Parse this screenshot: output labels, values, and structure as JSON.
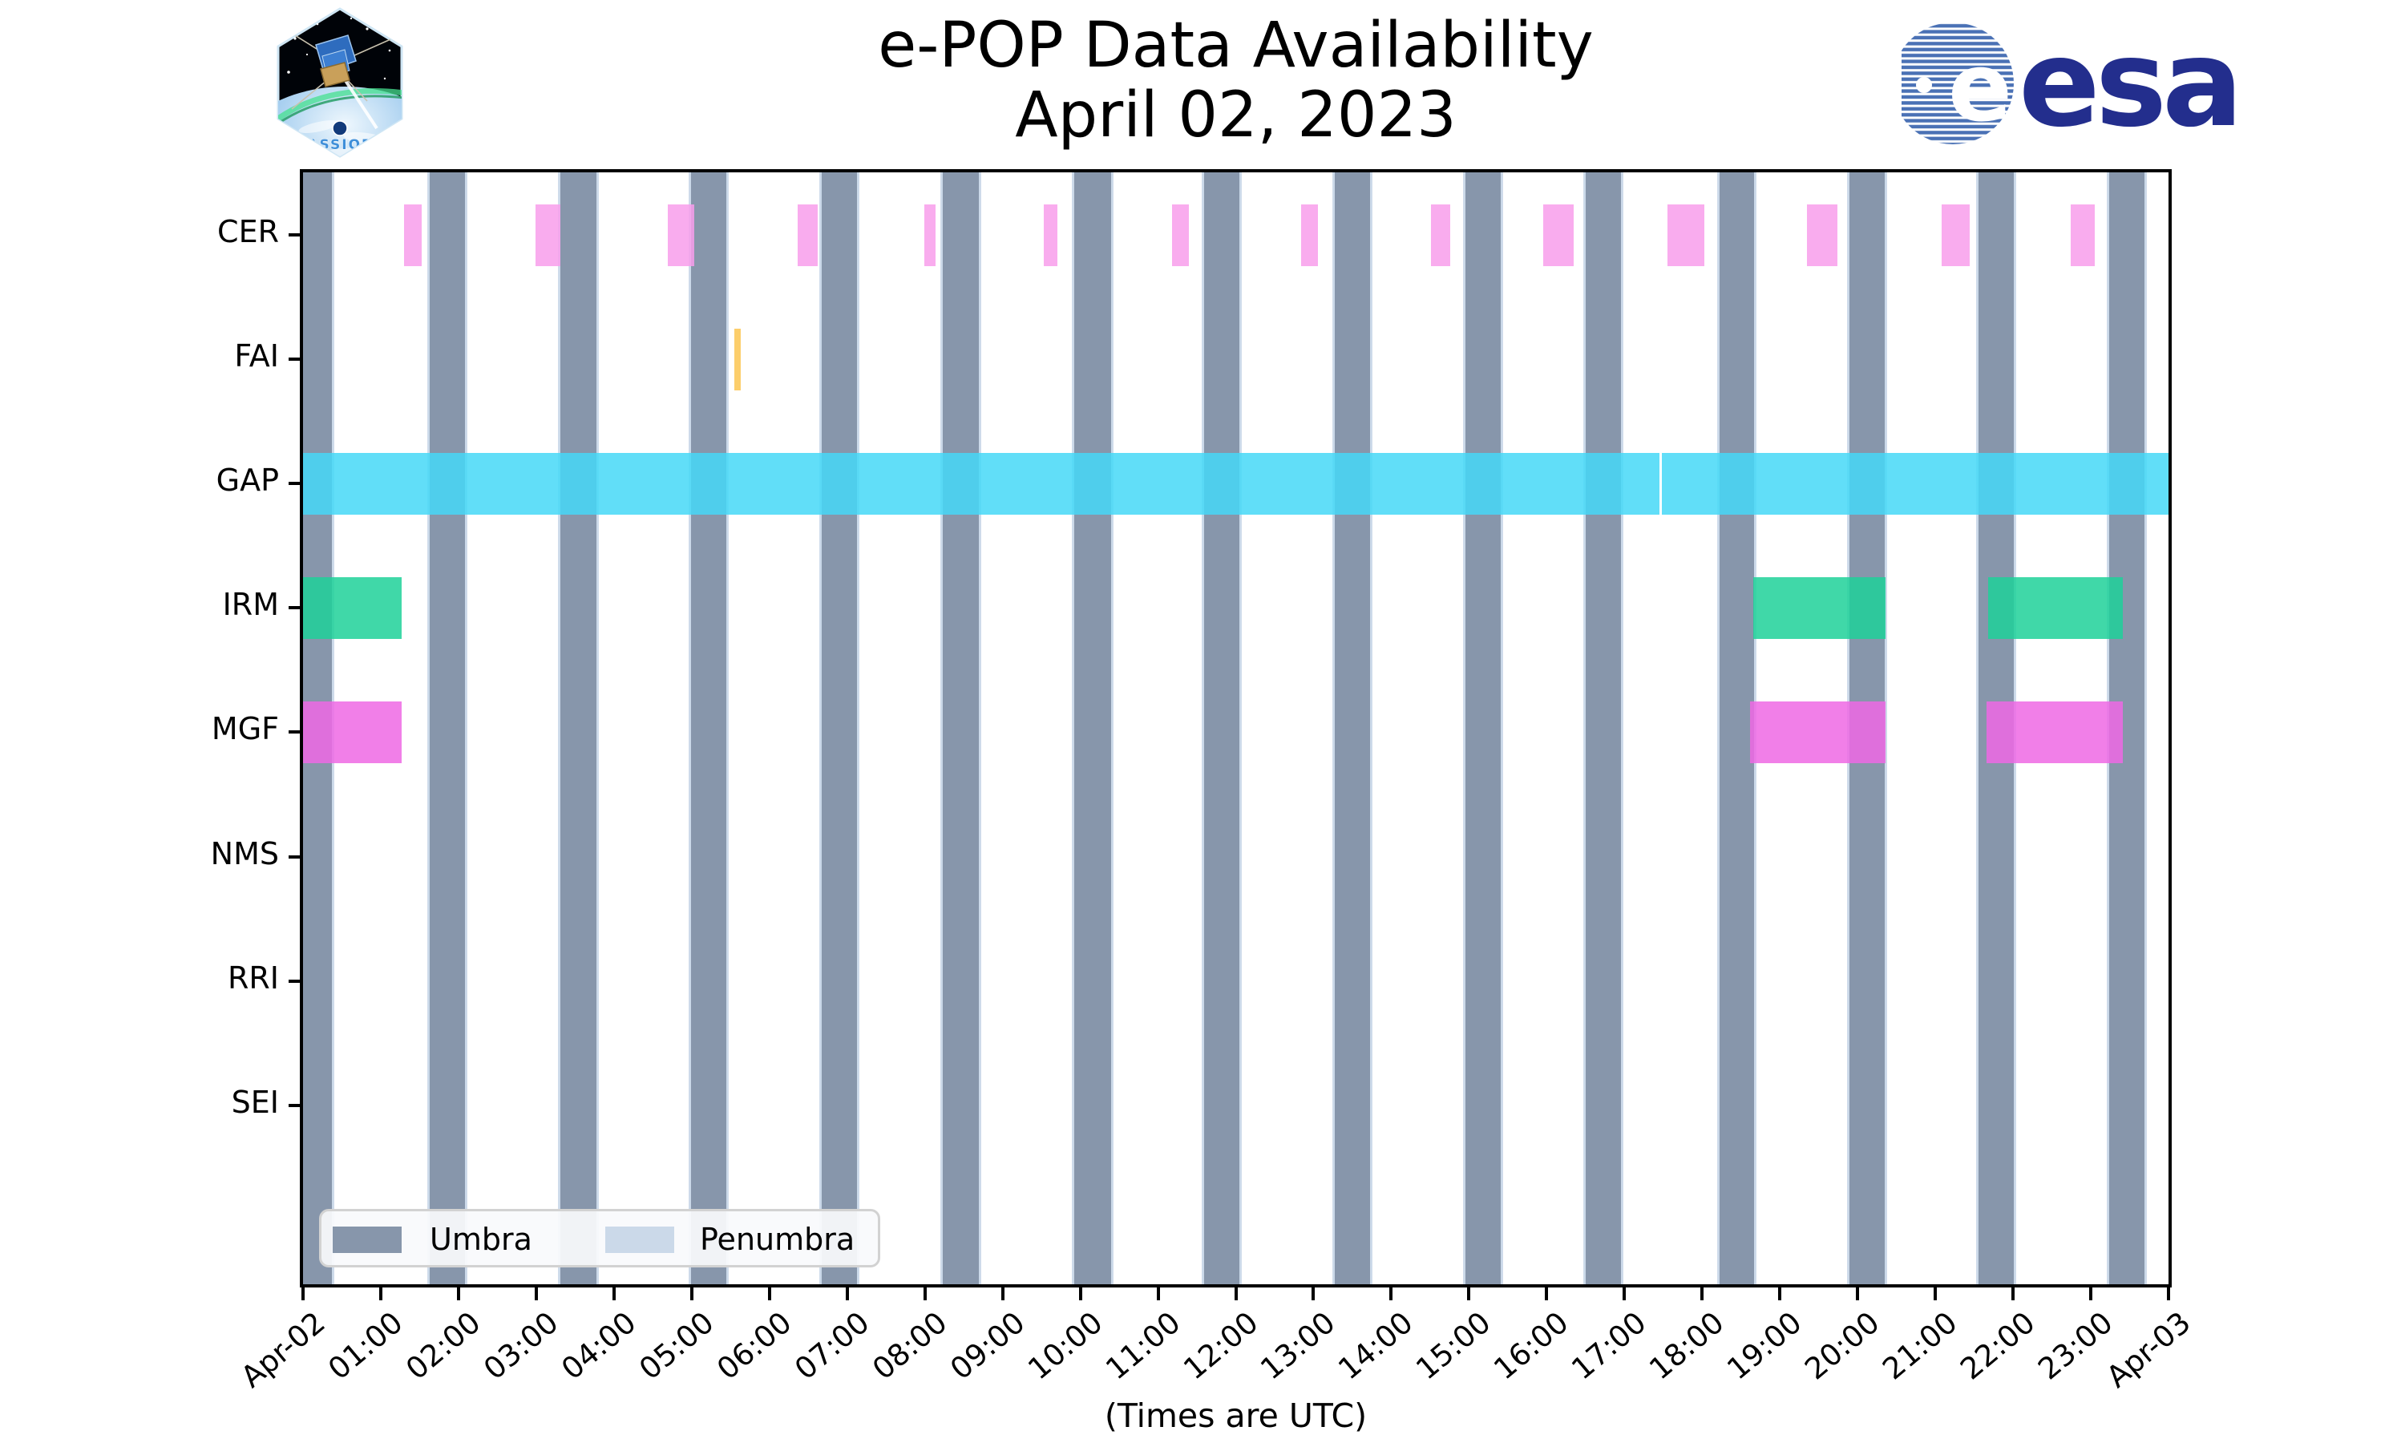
{
  "header": {
    "title": "e-POP Data Availability",
    "subtitle": "April 02, 2023",
    "cassiope_label": "CASSIOPE",
    "esa_label": "esa",
    "esa_ball_letter": "e"
  },
  "legend": {
    "items": [
      {
        "label": "Umbra",
        "color_key": "umbra"
      },
      {
        "label": "Penumbra",
        "color_key": "penumbra"
      }
    ]
  },
  "axis": {
    "xlabel": "(Times are UTC)",
    "y_labels": [
      "CER",
      "FAI",
      "GAP",
      "IRM",
      "MGF",
      "NMS",
      "RRI",
      "SEI"
    ],
    "x_tick_labels": [
      "Apr-02",
      "01:00",
      "02:00",
      "03:00",
      "04:00",
      "05:00",
      "06:00",
      "07:00",
      "08:00",
      "09:00",
      "10:00",
      "11:00",
      "12:00",
      "13:00",
      "14:00",
      "15:00",
      "16:00",
      "17:00",
      "18:00",
      "19:00",
      "20:00",
      "21:00",
      "22:00",
      "23:00",
      "Apr-03"
    ]
  },
  "colors": {
    "background": "#ffffff",
    "spine": "#000000",
    "text": "#000000",
    "umbra": "#8796AB",
    "penumbra": "#CBD9E9",
    "cer": "rgba(248,157,235,0.85)",
    "fai": "rgba(252,198,81,0.85)",
    "gap": "rgba(69,216,247,0.85)",
    "irm": "rgba(31,209,153,0.85)",
    "mgf": "rgba(238,104,228,0.85)"
  },
  "chart_data": {
    "type": "bar",
    "subtype": "broken_barh_timeline",
    "title": "e-POP Data Availability",
    "subtitle": "April 02, 2023",
    "xlabel": "(Times are UTC)",
    "x_unit": "hours UTC on 2023-04-02",
    "xlim": [
      0,
      24
    ],
    "x_tick_labels": [
      "Apr-02",
      "01:00",
      "02:00",
      "03:00",
      "04:00",
      "05:00",
      "06:00",
      "07:00",
      "08:00",
      "09:00",
      "10:00",
      "11:00",
      "12:00",
      "13:00",
      "14:00",
      "15:00",
      "16:00",
      "17:00",
      "18:00",
      "19:00",
      "20:00",
      "21:00",
      "22:00",
      "23:00",
      "Apr-03"
    ],
    "rows": [
      "CER",
      "FAI",
      "GAP",
      "IRM",
      "MGF",
      "NMS",
      "RRI",
      "SEI"
    ],
    "legend": [
      "Umbra",
      "Penumbra"
    ],
    "series": [
      {
        "name": "CER",
        "color_key": "cer",
        "intervals_hours": [
          [
            1.3,
            1.53
          ],
          [
            2.99,
            3.31
          ],
          [
            4.69,
            5.03
          ],
          [
            6.36,
            6.62
          ],
          [
            7.99,
            8.14
          ],
          [
            9.53,
            9.71
          ],
          [
            11.18,
            11.4
          ],
          [
            12.84,
            13.06
          ],
          [
            14.51,
            14.76
          ],
          [
            15.96,
            16.35
          ],
          [
            17.55,
            18.03
          ],
          [
            19.35,
            19.74
          ],
          [
            21.08,
            21.44
          ],
          [
            22.74,
            23.05
          ]
        ]
      },
      {
        "name": "FAI",
        "color_key": "fai",
        "intervals_hours": [
          [
            5.55,
            5.63
          ]
        ]
      },
      {
        "name": "GAP",
        "color_key": "gap",
        "intervals_hours": [
          [
            0.0,
            17.45
          ],
          [
            17.48,
            24.0
          ]
        ]
      },
      {
        "name": "IRM",
        "color_key": "irm",
        "intervals_hours": [
          [
            0.0,
            1.27
          ],
          [
            18.66,
            20.36
          ],
          [
            21.68,
            23.41
          ]
        ]
      },
      {
        "name": "MGF",
        "color_key": "mgf",
        "intervals_hours": [
          [
            0.0,
            1.27
          ],
          [
            18.62,
            20.36
          ],
          [
            21.66,
            23.41
          ]
        ]
      },
      {
        "name": "NMS",
        "color_key": "nms",
        "intervals_hours": []
      },
      {
        "name": "RRI",
        "color_key": "rri",
        "intervals_hours": []
      },
      {
        "name": "SEI",
        "color_key": "sei",
        "intervals_hours": []
      }
    ],
    "shading": {
      "umbra_intervals_hours": [
        [
          0.0,
          0.37
        ],
        [
          1.63,
          2.08
        ],
        [
          3.31,
          3.77
        ],
        [
          4.99,
          5.45
        ],
        [
          6.67,
          7.13
        ],
        [
          8.23,
          8.69
        ],
        [
          9.92,
          10.4
        ],
        [
          11.59,
          12.05
        ],
        [
          13.27,
          13.73
        ],
        [
          14.96,
          15.41
        ],
        [
          16.5,
          16.96
        ],
        [
          18.22,
          18.67
        ],
        [
          19.9,
          20.35
        ],
        [
          21.56,
          22.01
        ],
        [
          23.24,
          23.69
        ]
      ],
      "penumbra_edge_hours": 0.03
    }
  }
}
